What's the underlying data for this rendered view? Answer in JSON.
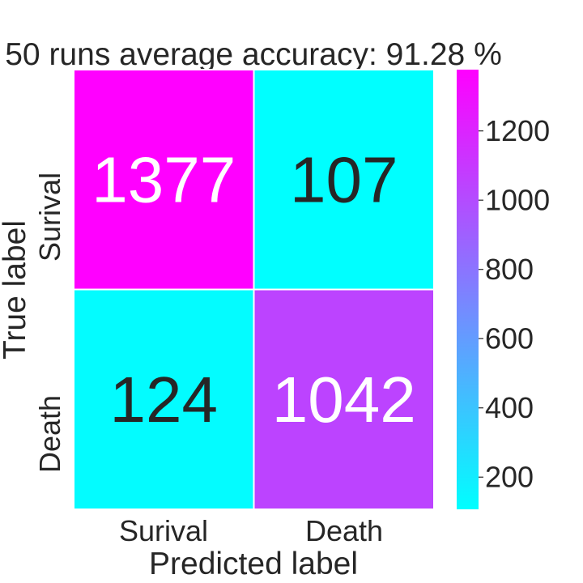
{
  "chart_data": {
    "type": "heatmap",
    "title": "50 runs average accuracy: 91.28 %",
    "xlabel": "Predicted label",
    "ylabel": "True label",
    "x_categories": [
      "Surival",
      "Death"
    ],
    "y_categories": [
      "Surival",
      "Death"
    ],
    "values": [
      [
        1377,
        107
      ],
      [
        124,
        1042
      ]
    ],
    "colormap": "cool",
    "color_min": "#00ffff",
    "color_max": "#ff00ff",
    "colorbar": {
      "range": [
        107,
        1377
      ],
      "ticks": [
        200,
        400,
        600,
        800,
        1000,
        1200
      ],
      "tick_labels": [
        "200",
        "400",
        "600",
        "800",
        "1000",
        "1200"
      ]
    }
  }
}
